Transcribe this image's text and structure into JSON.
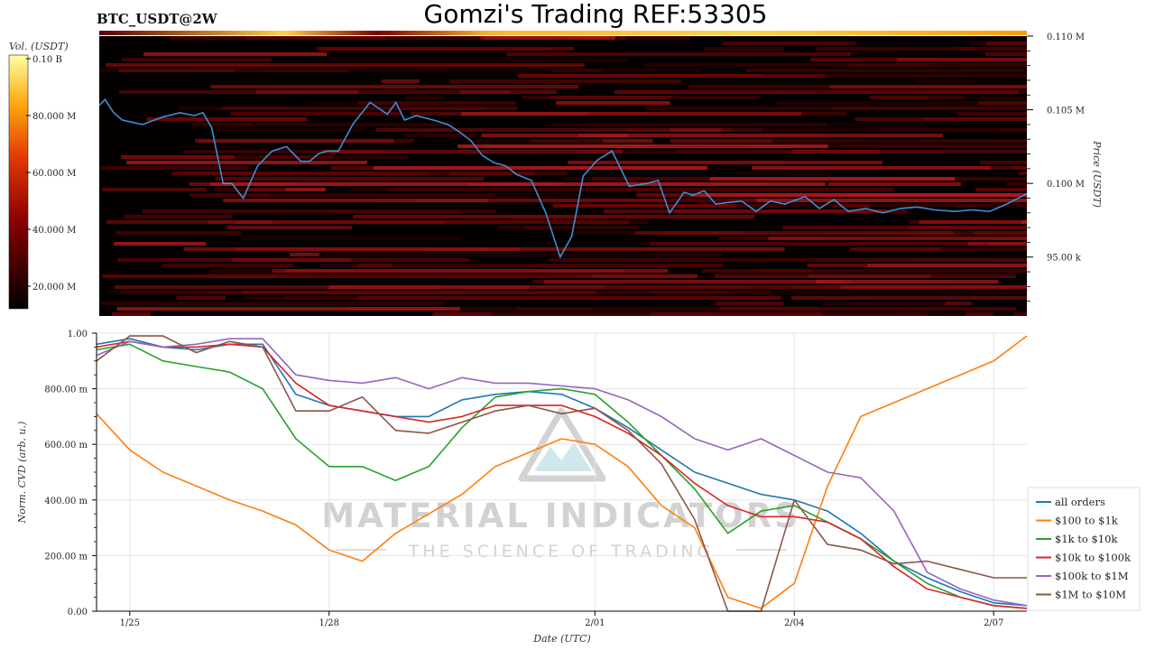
{
  "header": {
    "symbol": "BTC_USDT@2W",
    "title": "Gomzi's Trading REF:53305"
  },
  "colorbar": {
    "label": "Vol. (USDT)",
    "ticks": [
      "0.10 B",
      "80.000 M",
      "60.000 M",
      "40.000 M",
      "20.000 M"
    ]
  },
  "watermark": {
    "line1": "MATERIAL INDICATORS",
    "line2": "THE SCIENCE OF TRADING"
  },
  "chart_data": [
    {
      "type": "heatmap",
      "ylabel": "Price (USDT)",
      "ylim": [
        91000,
        110000
      ],
      "ytick_labels": [
        "0.110 M",
        "0.105 M",
        "0.100 M",
        "95.00 k"
      ],
      "price_series": {
        "x_day_offsets": [
          0,
          0.2,
          0.5,
          0.8,
          1.5,
          2.2,
          2.8,
          3.3,
          3.6,
          3.9,
          4.3,
          4.6,
          5.0,
          5.5,
          6.0,
          6.5,
          7.0,
          7.3,
          7.6,
          7.9,
          8.3,
          8.8,
          9.4,
          10.0,
          10.3,
          10.6,
          11.0,
          11.6,
          12.1,
          12.5,
          12.9,
          13.3,
          13.7,
          14.1,
          14.5,
          15.0,
          15.5,
          16.0,
          16.4,
          16.8,
          17.3,
          17.8,
          18.4,
          19.0,
          19.4,
          19.8,
          20.3,
          20.6,
          21.0,
          21.4,
          21.8,
          22.3,
          22.8,
          23.3,
          23.8,
          24.5,
          25.0,
          25.5,
          26.0,
          26.6,
          27.2,
          27.8,
          28.4,
          29.0,
          29.7,
          30.3,
          30.9,
          31.5,
          32.2
        ],
        "values": [
          105300,
          105700,
          104800,
          104300,
          104000,
          104500,
          104800,
          104600,
          104800,
          103800,
          100000,
          100000,
          99000,
          101200,
          102200,
          102500,
          101500,
          101500,
          102000,
          102200,
          102200,
          104000,
          105500,
          104700,
          105500,
          104300,
          104600,
          104300,
          104000,
          103500,
          102900,
          101900,
          101400,
          101200,
          100600,
          100200,
          98000,
          95000,
          96400,
          100500,
          101600,
          102200,
          99800,
          100000,
          100200,
          98000,
          99400,
          99200,
          99500,
          98600,
          98700,
          98800,
          98100,
          98800,
          98600,
          99100,
          98300,
          98900,
          98100,
          98300,
          98000,
          98300,
          98400,
          98200,
          98100,
          98200,
          98100,
          98600,
          99300
        ]
      }
    },
    {
      "type": "line",
      "xlabel": "Date (UTC)",
      "ylabel": "Norm. CVD (arb. u.)",
      "ylim": [
        0,
        1
      ],
      "ytick_labels": [
        "0.00",
        "200.00 m",
        "400.00 m",
        "600.00 m",
        "800.00 m",
        "1.00"
      ],
      "x_day_offsets": [
        0,
        0.5,
        1,
        1.5,
        2,
        2.5,
        3,
        3.5,
        4,
        4.5,
        5,
        5.5,
        6,
        6.5,
        7,
        7.5,
        8,
        8.5,
        9,
        9.5,
        10,
        10.5,
        11,
        11.5,
        12,
        12.5,
        13,
        13.5,
        14
      ],
      "xtick_labels": [
        "1/25",
        "1/28",
        "2/01",
        "2/04",
        "2/07"
      ],
      "xtick_day_offsets": [
        0.5,
        3.5,
        7.5,
        10.5,
        13.5
      ],
      "grid": true,
      "legend_position": "right",
      "series": [
        {
          "name": "all orders",
          "color": "#1f77b4",
          "values": [
            0.96,
            0.98,
            0.95,
            0.94,
            0.96,
            0.96,
            0.78,
            0.74,
            0.72,
            0.7,
            0.7,
            0.76,
            0.78,
            0.79,
            0.78,
            0.73,
            0.66,
            0.58,
            0.5,
            0.46,
            0.42,
            0.4,
            0.36,
            0.28,
            0.18,
            0.12,
            0.07,
            0.03,
            0.02
          ]
        },
        {
          "name": "$100 to $1k",
          "color": "#ff7f0e",
          "values": [
            0.71,
            0.58,
            0.5,
            0.45,
            0.4,
            0.36,
            0.31,
            0.22,
            0.18,
            0.28,
            0.35,
            0.42,
            0.52,
            0.57,
            0.62,
            0.6,
            0.52,
            0.38,
            0.3,
            0.05,
            0.01,
            0.1,
            0.45,
            0.7,
            0.75,
            0.8,
            0.85,
            0.9,
            0.99
          ]
        },
        {
          "name": "$1k to $10k",
          "color": "#2ca02c",
          "values": [
            0.94,
            0.96,
            0.9,
            0.88,
            0.86,
            0.8,
            0.62,
            0.52,
            0.52,
            0.47,
            0.52,
            0.66,
            0.77,
            0.79,
            0.8,
            0.78,
            0.68,
            0.56,
            0.44,
            0.28,
            0.36,
            0.38,
            0.32,
            0.26,
            0.18,
            0.1,
            0.05,
            0.02,
            0.01
          ]
        },
        {
          "name": "$10k to $100k",
          "color": "#d62728",
          "values": [
            0.95,
            0.97,
            0.95,
            0.95,
            0.96,
            0.95,
            0.82,
            0.74,
            0.72,
            0.7,
            0.68,
            0.7,
            0.74,
            0.74,
            0.74,
            0.7,
            0.64,
            0.56,
            0.46,
            0.38,
            0.34,
            0.34,
            0.32,
            0.26,
            0.16,
            0.08,
            0.05,
            0.02,
            0.01
          ]
        },
        {
          "name": "$100k to $1M",
          "color": "#9467bd",
          "values": [
            0.92,
            0.97,
            0.95,
            0.96,
            0.98,
            0.98,
            0.85,
            0.83,
            0.82,
            0.84,
            0.8,
            0.84,
            0.82,
            0.82,
            0.81,
            0.8,
            0.76,
            0.7,
            0.62,
            0.58,
            0.62,
            0.56,
            0.5,
            0.48,
            0.36,
            0.14,
            0.08,
            0.04,
            0.02
          ]
        },
        {
          "name": "$1M to $10M",
          "color": "#8c564b",
          "values": [
            0.9,
            0.99,
            0.99,
            0.93,
            0.97,
            0.95,
            0.72,
            0.72,
            0.77,
            0.65,
            0.64,
            0.68,
            0.72,
            0.74,
            0.71,
            0.73,
            0.65,
            0.53,
            0.33,
            0.0,
            0.0,
            0.4,
            0.24,
            0.22,
            0.17,
            0.18,
            0.15,
            0.12,
            0.12
          ]
        }
      ]
    }
  ]
}
